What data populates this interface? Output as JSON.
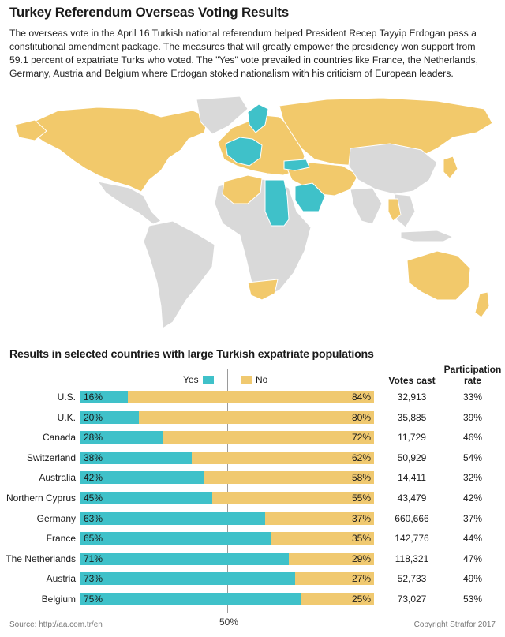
{
  "title": "Turkey Referendum Overseas Voting Results",
  "intro": "The overseas vote in the April 16 Turkish national referendum helped President Recep Tayyip Erdogan pass a constitutional amendment package. The measures that will greatly empower the presidency won support from 59.1 percent of expatriate Turks who voted. The \"Yes\" vote prevailed in countries like France, the Netherlands, Germany, Austria and Belgium where Erdogan stoked nationalism with his criticism of European leaders.",
  "map": {
    "colors": {
      "land": "#d9d9d9",
      "yes": "#3fc1c9",
      "no": "#f2c96b"
    }
  },
  "chart_data": {
    "type": "bar",
    "subtitle": "Results in selected countries with large Turkish expatriate populations",
    "legend": {
      "yes": "Yes",
      "no": "No"
    },
    "colors": {
      "yes": "#3fc1c9",
      "no": "#f0c970"
    },
    "midline_label": "50%",
    "columns": {
      "votes": "Votes cast",
      "rate": "Participation rate"
    },
    "categories": [
      "U.S.",
      "U.K.",
      "Canada",
      "Switzerland",
      "Australia",
      "Northern Cyprus",
      "Germany",
      "France",
      "The Netherlands",
      "Austria",
      "Belgium"
    ],
    "series": [
      {
        "name": "Yes",
        "values": [
          16,
          20,
          28,
          38,
          42,
          45,
          63,
          65,
          71,
          73,
          75
        ]
      },
      {
        "name": "No",
        "values": [
          84,
          80,
          72,
          62,
          58,
          55,
          37,
          35,
          29,
          27,
          25
        ]
      }
    ],
    "votes_cast": [
      "32,913",
      "35,885",
      "11,729",
      "50,929",
      "14,411",
      "43,479",
      "660,666",
      "142,776",
      "118,321",
      "52,733",
      "73,027"
    ],
    "participation": [
      "33%",
      "39%",
      "46%",
      "54%",
      "32%",
      "42%",
      "37%",
      "44%",
      "47%",
      "49%",
      "53%"
    ],
    "ylim": [
      0,
      100
    ]
  },
  "footer": {
    "source": "Source: http://aa.com.tr/en",
    "copyright": "Copyright Stratfor 2017"
  }
}
